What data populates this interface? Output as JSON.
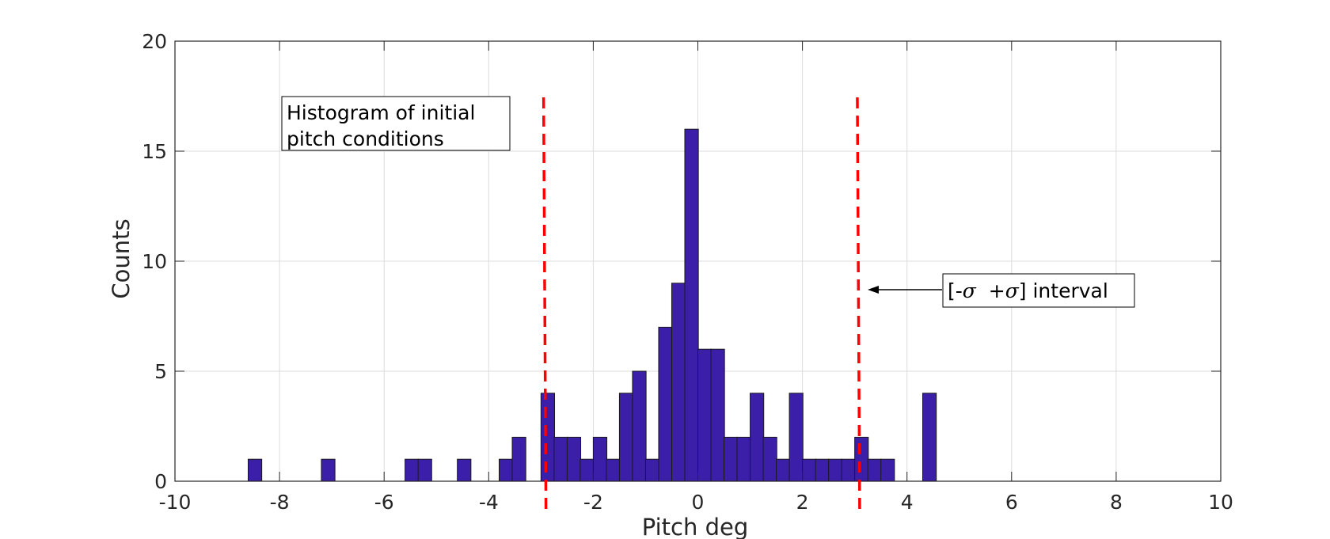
{
  "chart_data": {
    "type": "bar",
    "title": "",
    "xlabel": "Pitch deg",
    "ylabel": "Counts",
    "xlim": [
      -10,
      10
    ],
    "ylim": [
      0,
      20
    ],
    "xticks": [
      -10,
      -8,
      -6,
      -4,
      -2,
      0,
      2,
      4,
      6,
      8,
      10
    ],
    "yticks": [
      0,
      5,
      10,
      15,
      20
    ],
    "grid": true,
    "bin_width": 0.26,
    "bar_color": "#3b1fa8",
    "bar_edge_color": "#1a1a1a",
    "bins": [
      {
        "x": -8.6,
        "count": 1
      },
      {
        "x": -7.2,
        "count": 1
      },
      {
        "x": -5.6,
        "count": 1
      },
      {
        "x": -5.35,
        "count": 1
      },
      {
        "x": -4.6,
        "count": 1
      },
      {
        "x": -3.8,
        "count": 1
      },
      {
        "x": -3.55,
        "count": 2
      },
      {
        "x": -3.0,
        "count": 4
      },
      {
        "x": -2.75,
        "count": 2
      },
      {
        "x": -2.5,
        "count": 2
      },
      {
        "x": -2.25,
        "count": 1
      },
      {
        "x": -2.0,
        "count": 2
      },
      {
        "x": -1.75,
        "count": 1
      },
      {
        "x": -1.5,
        "count": 4
      },
      {
        "x": -1.25,
        "count": 5
      },
      {
        "x": -1.0,
        "count": 1
      },
      {
        "x": -0.75,
        "count": 7
      },
      {
        "x": -0.5,
        "count": 9
      },
      {
        "x": -0.25,
        "count": 16
      },
      {
        "x": 0.0,
        "count": 6
      },
      {
        "x": 0.25,
        "count": 6
      },
      {
        "x": 0.5,
        "count": 2
      },
      {
        "x": 0.75,
        "count": 2
      },
      {
        "x": 1.0,
        "count": 4
      },
      {
        "x": 1.25,
        "count": 2
      },
      {
        "x": 1.5,
        "count": 1
      },
      {
        "x": 1.75,
        "count": 4
      },
      {
        "x": 2.0,
        "count": 1
      },
      {
        "x": 2.25,
        "count": 1
      },
      {
        "x": 2.5,
        "count": 1
      },
      {
        "x": 2.75,
        "count": 1
      },
      {
        "x": 3.0,
        "count": 2
      },
      {
        "x": 3.25,
        "count": 1
      },
      {
        "x": 3.5,
        "count": 1
      },
      {
        "x": 4.3,
        "count": 4
      }
    ],
    "sigma_lines": {
      "values": [
        -2.95,
        3.05
      ],
      "color": "#ff0000",
      "style": "dashed"
    },
    "annotations": {
      "textbox_lines": [
        "Histogram of initial",
        "pitch conditions"
      ],
      "interval_label": {
        "open": "[-",
        "sigma1": "σ",
        "mid": "  +",
        "sigma2": "σ",
        "close": "] interval"
      },
      "arrow_target": {
        "x": 3.2,
        "y": 8.7
      }
    }
  }
}
